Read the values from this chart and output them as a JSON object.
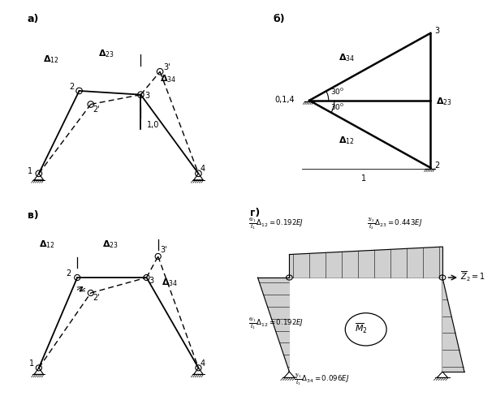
{
  "bg_color": "#ffffff",
  "label_a": "а)",
  "label_b": "б)",
  "label_v": "в)",
  "label_g": "г)"
}
